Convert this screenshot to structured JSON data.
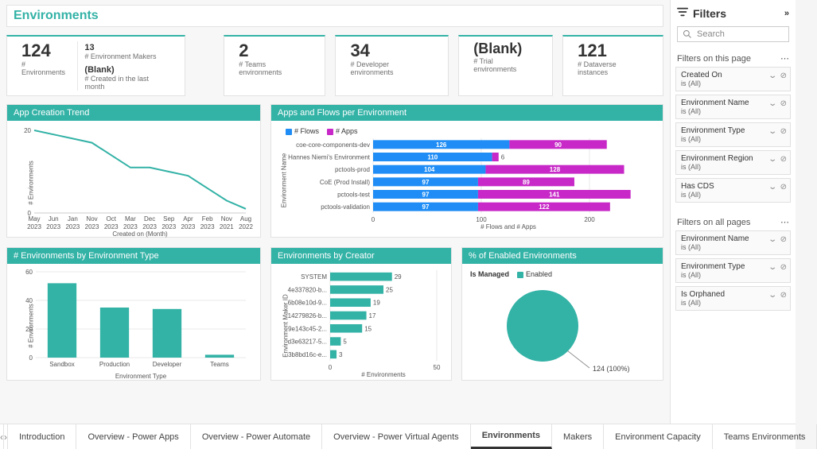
{
  "colors": {
    "teal": "#33b2a6",
    "blue": "#1f8df5",
    "magenta": "#c728c7",
    "grid": "#e8e8e8"
  },
  "page_title": "Environments",
  "kpi": {
    "environments": {
      "value": "124",
      "label": "# Environments"
    },
    "makers": {
      "value": "13",
      "label": "# Environment Makers"
    },
    "created_recent": {
      "value": "(Blank)",
      "label": "# Created in the last month"
    },
    "teams": {
      "value": "2",
      "label": "# Teams environments"
    },
    "developer": {
      "value": "34",
      "label": "# Developer environments"
    },
    "trial": {
      "value": "(Blank)",
      "label": "# Trial environments"
    },
    "dataverse": {
      "value": "121",
      "label": "# Dataverse instances"
    }
  },
  "trend": {
    "title": "App Creation Trend",
    "x_axis_title": "Created on (Month)",
    "y_axis_title": "# Environments",
    "y_ticks": [
      0,
      20
    ],
    "x_labels": [
      "May 2023",
      "Jun 2023",
      "Jan 2023",
      "Nov 2023",
      "Oct 2023",
      "Mar 2023",
      "Dec 2023",
      "Sep 2023",
      "Apr 2023",
      "Feb 2023",
      "Nov 2021",
      "Aug 2022"
    ],
    "values": [
      20,
      19,
      18,
      17,
      14,
      11,
      11,
      10,
      9,
      6,
      3,
      1
    ],
    "line_color": "#33b2a6",
    "line_width": 2
  },
  "apps_flows": {
    "title": "Apps and Flows per Environment",
    "x_axis_title": "# Flows and # Apps",
    "y_axis_title": "Environment Name",
    "legend": [
      {
        "label": "# Flows",
        "color": "#1f8df5"
      },
      {
        "label": "# Apps",
        "color": "#c728c7"
      }
    ],
    "x_ticks": [
      0,
      100,
      200
    ],
    "rows": [
      {
        "name": "coe-core-components-dev",
        "flows": 126,
        "apps": 90
      },
      {
        "name": "Hannes Niemi's Environment",
        "flows": 110,
        "apps": 6
      },
      {
        "name": "pctools-prod",
        "flows": 104,
        "apps": 128
      },
      {
        "name": "CoE (Prod Install)",
        "flows": 97,
        "apps": 89
      },
      {
        "name": "pctools-test",
        "flows": 97,
        "apps": 141
      },
      {
        "name": "pctools-validation",
        "flows": 97,
        "apps": 122
      }
    ]
  },
  "env_by_type": {
    "title": "# Environments by Environment Type",
    "x_axis_title": "Environment Type",
    "y_axis_title": "# Environments",
    "y_ticks": [
      0,
      20,
      40,
      60
    ],
    "bar_color": "#33b2a6",
    "bars": [
      {
        "label": "Sandbox",
        "value": 52
      },
      {
        "label": "Production",
        "value": 35
      },
      {
        "label": "Developer",
        "value": 34
      },
      {
        "label": "Teams",
        "value": 2
      }
    ]
  },
  "env_by_creator": {
    "title": "Environments by Creator",
    "x_axis_title": "# Environments",
    "y_axis_title": "Environment Maker ID",
    "x_ticks": [
      0,
      50
    ],
    "bar_color": "#33b2a6",
    "rows": [
      {
        "name": "SYSTEM",
        "value": 29
      },
      {
        "name": "4e337820-b...",
        "value": 25
      },
      {
        "name": "6b08e10d-9...",
        "value": 19
      },
      {
        "name": "14279826-b...",
        "value": 17
      },
      {
        "name": "9e143c45-2...",
        "value": 15
      },
      {
        "name": "d3e63217-5...",
        "value": 5
      },
      {
        "name": "3b8bd16c-e...",
        "value": 3
      }
    ]
  },
  "pct_enabled": {
    "title": "% of Enabled Environments",
    "legend_field": "Is Managed",
    "legend_item": "Enabled",
    "slice_color": "#33b2a6",
    "center_label": "124 (100%)"
  },
  "filters": {
    "pane_title": "Filters",
    "search_placeholder": "Search",
    "section_page": "Filters on this page",
    "section_all": "Filters on all pages",
    "page_filters": [
      {
        "name": "Created On",
        "value": "is (All)"
      },
      {
        "name": "Environment Name",
        "value": "is (All)"
      },
      {
        "name": "Environment Type",
        "value": "is (All)"
      },
      {
        "name": "Environment Region",
        "value": "is (All)"
      },
      {
        "name": "Has CDS",
        "value": "is (All)"
      }
    ],
    "all_filters": [
      {
        "name": "Environment Name",
        "value": "is (All)"
      },
      {
        "name": "Environment Type",
        "value": "is (All)"
      },
      {
        "name": "Is Orphaned",
        "value": "is (All)"
      }
    ]
  },
  "tabs": [
    "Introduction",
    "Overview - Power Apps",
    "Overview - Power Automate",
    "Overview - Power Virtual Agents",
    "Environments",
    "Makers",
    "Environment Capacity",
    "Teams Environments"
  ],
  "active_tab": "Environments"
}
